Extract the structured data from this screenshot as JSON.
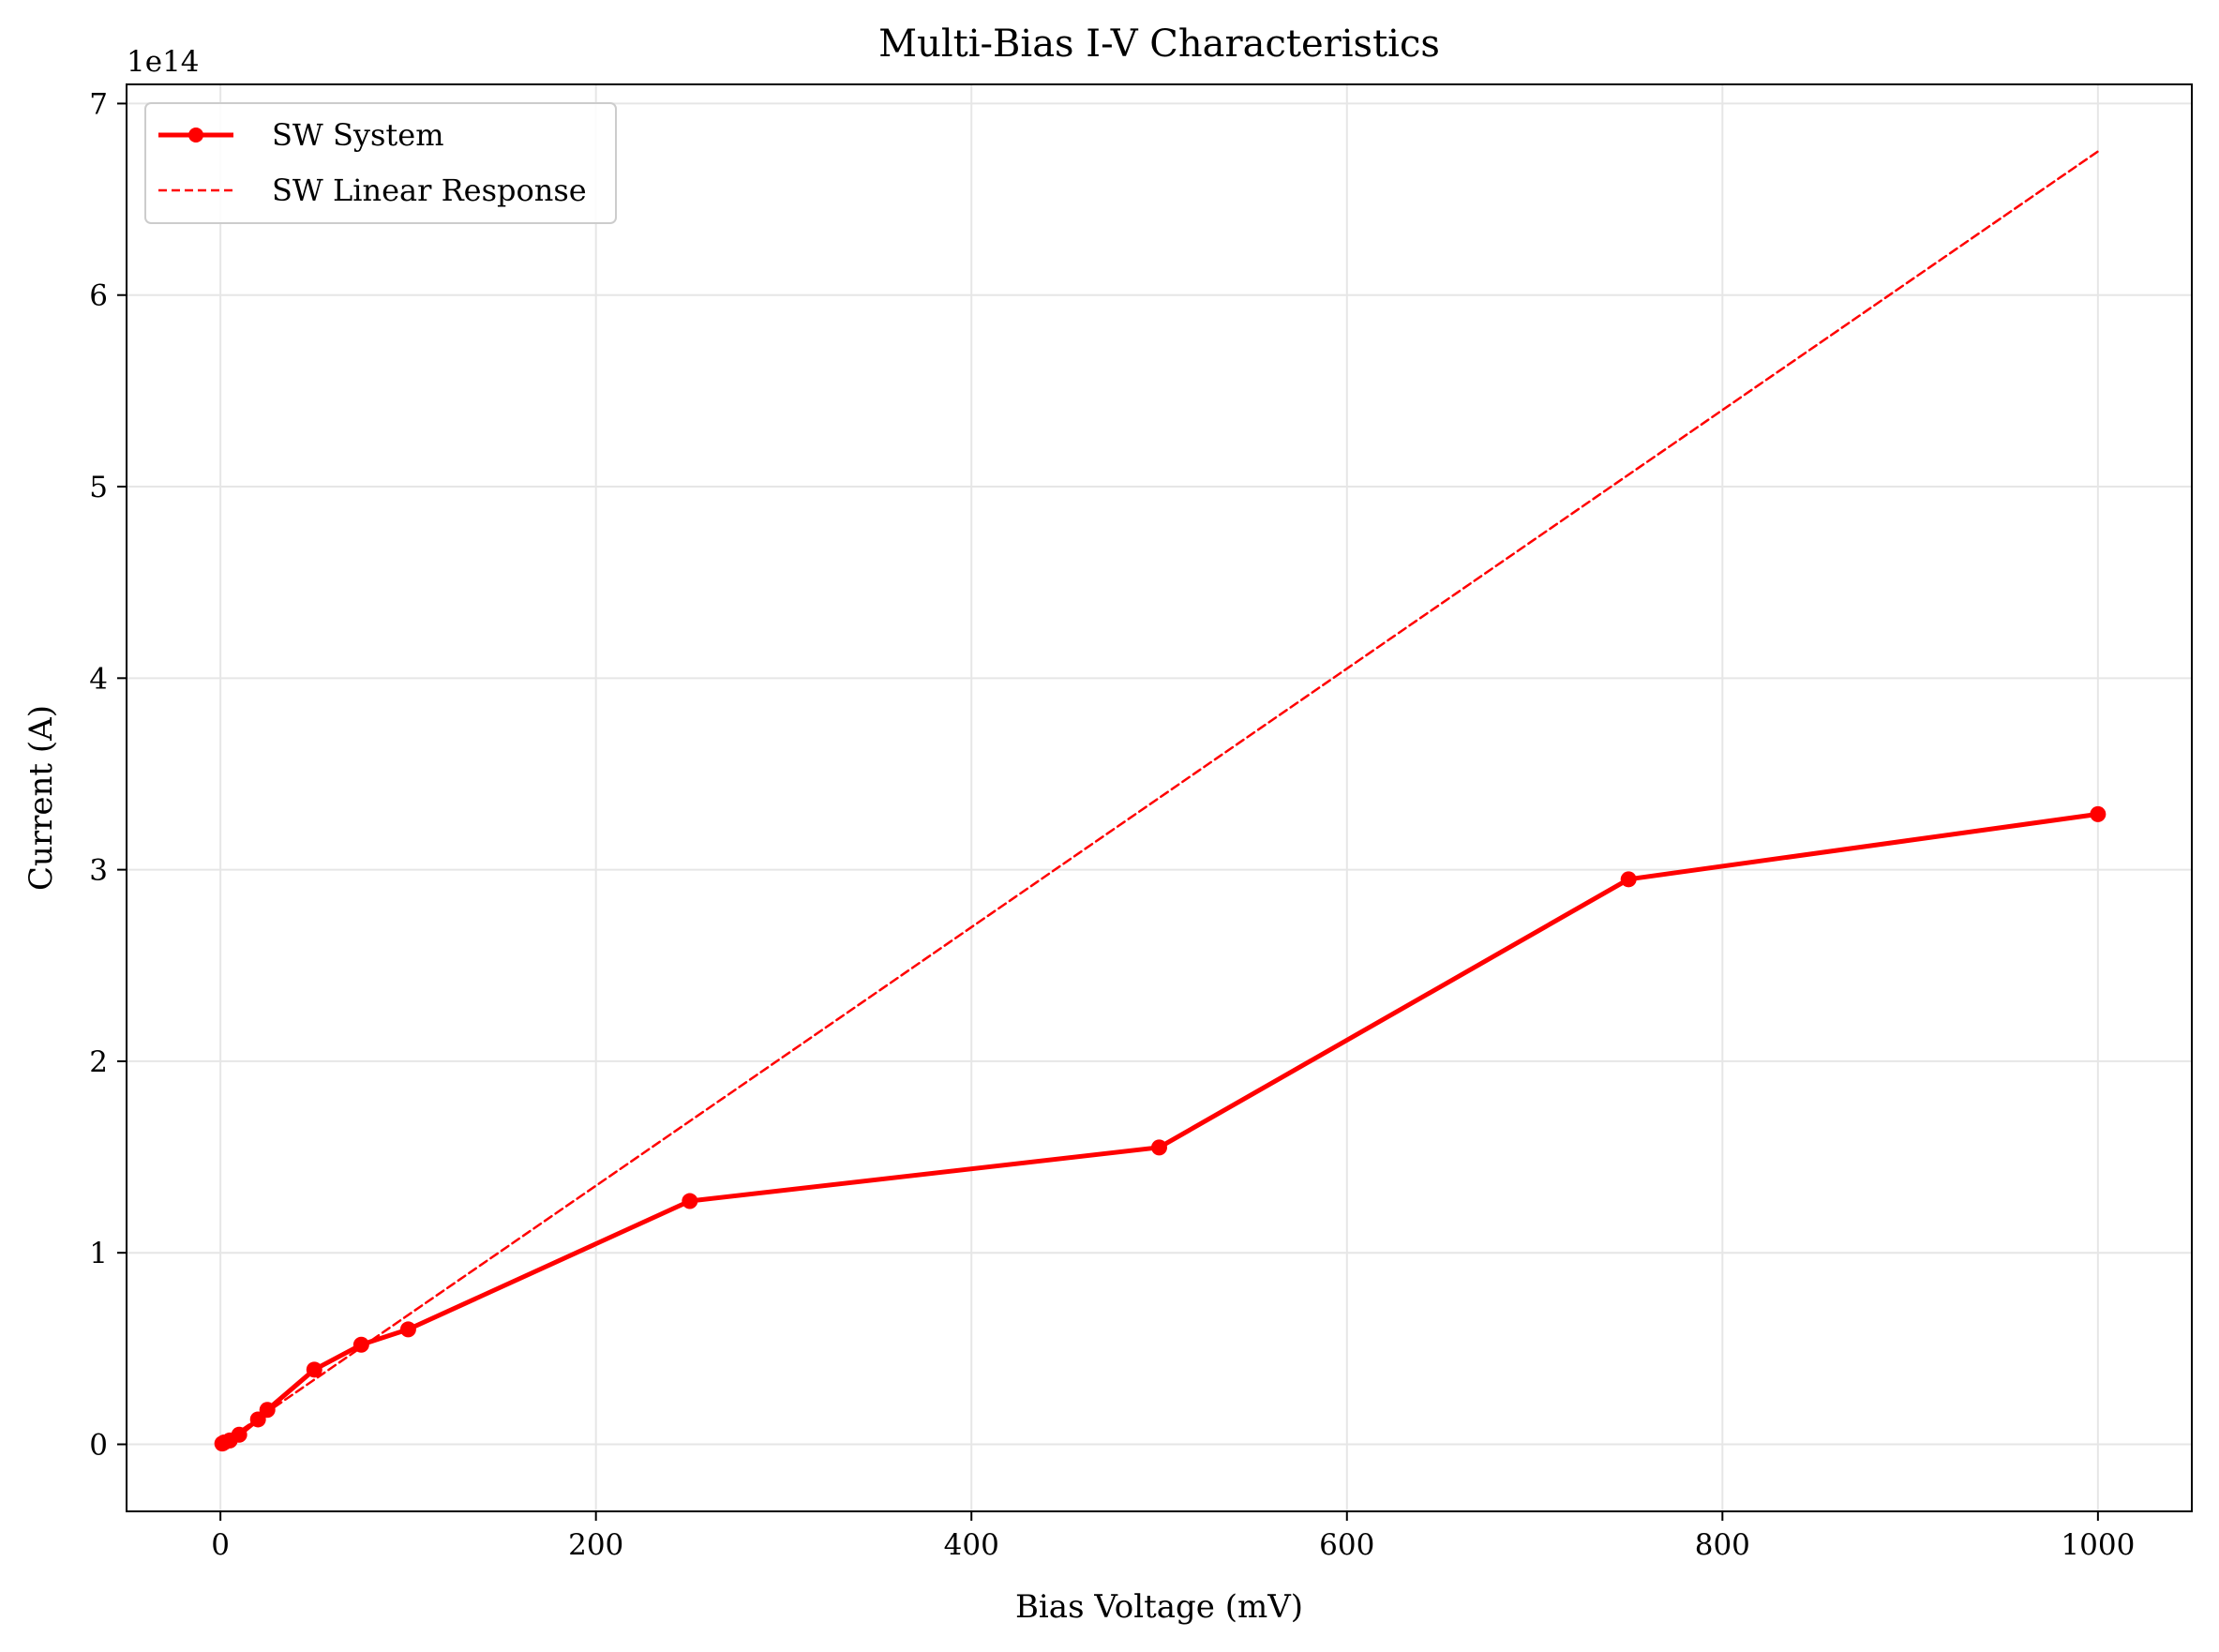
{
  "chart_data": {
    "type": "line",
    "title": "Multi-Bias I-V Characteristics",
    "xlabel": "Bias Voltage (mV)",
    "ylabel": "Current (A)",
    "y_offset_label": "1e14",
    "xlim": [
      -50,
      1050
    ],
    "ylim": [
      -0.35,
      7.1
    ],
    "x_ticks": [
      0,
      200,
      400,
      600,
      800,
      1000
    ],
    "x_tick_labels": [
      "0",
      "200",
      "400",
      "600",
      "800",
      "1000"
    ],
    "y_ticks": [
      0,
      1,
      2,
      3,
      4,
      5,
      6,
      7
    ],
    "y_tick_labels": [
      "0",
      "1",
      "2",
      "3",
      "4",
      "5",
      "6",
      "7"
    ],
    "grid": true,
    "legend_position": "top-left",
    "series": [
      {
        "name": "SW System",
        "style": "solid-markers",
        "color": "#ff0000",
        "x": [
          1,
          2,
          5,
          10,
          20,
          25,
          50,
          75,
          100,
          250,
          500,
          750,
          1000
        ],
        "y": [
          0.004,
          0.01,
          0.02,
          0.05,
          0.13,
          0.18,
          0.39,
          0.52,
          0.6,
          1.27,
          1.55,
          2.95,
          3.29
        ]
      },
      {
        "name": "SW Linear Response",
        "style": "dashed",
        "color": "#ff0000",
        "x": [
          0,
          1000
        ],
        "y": [
          0,
          6.75
        ]
      }
    ]
  }
}
